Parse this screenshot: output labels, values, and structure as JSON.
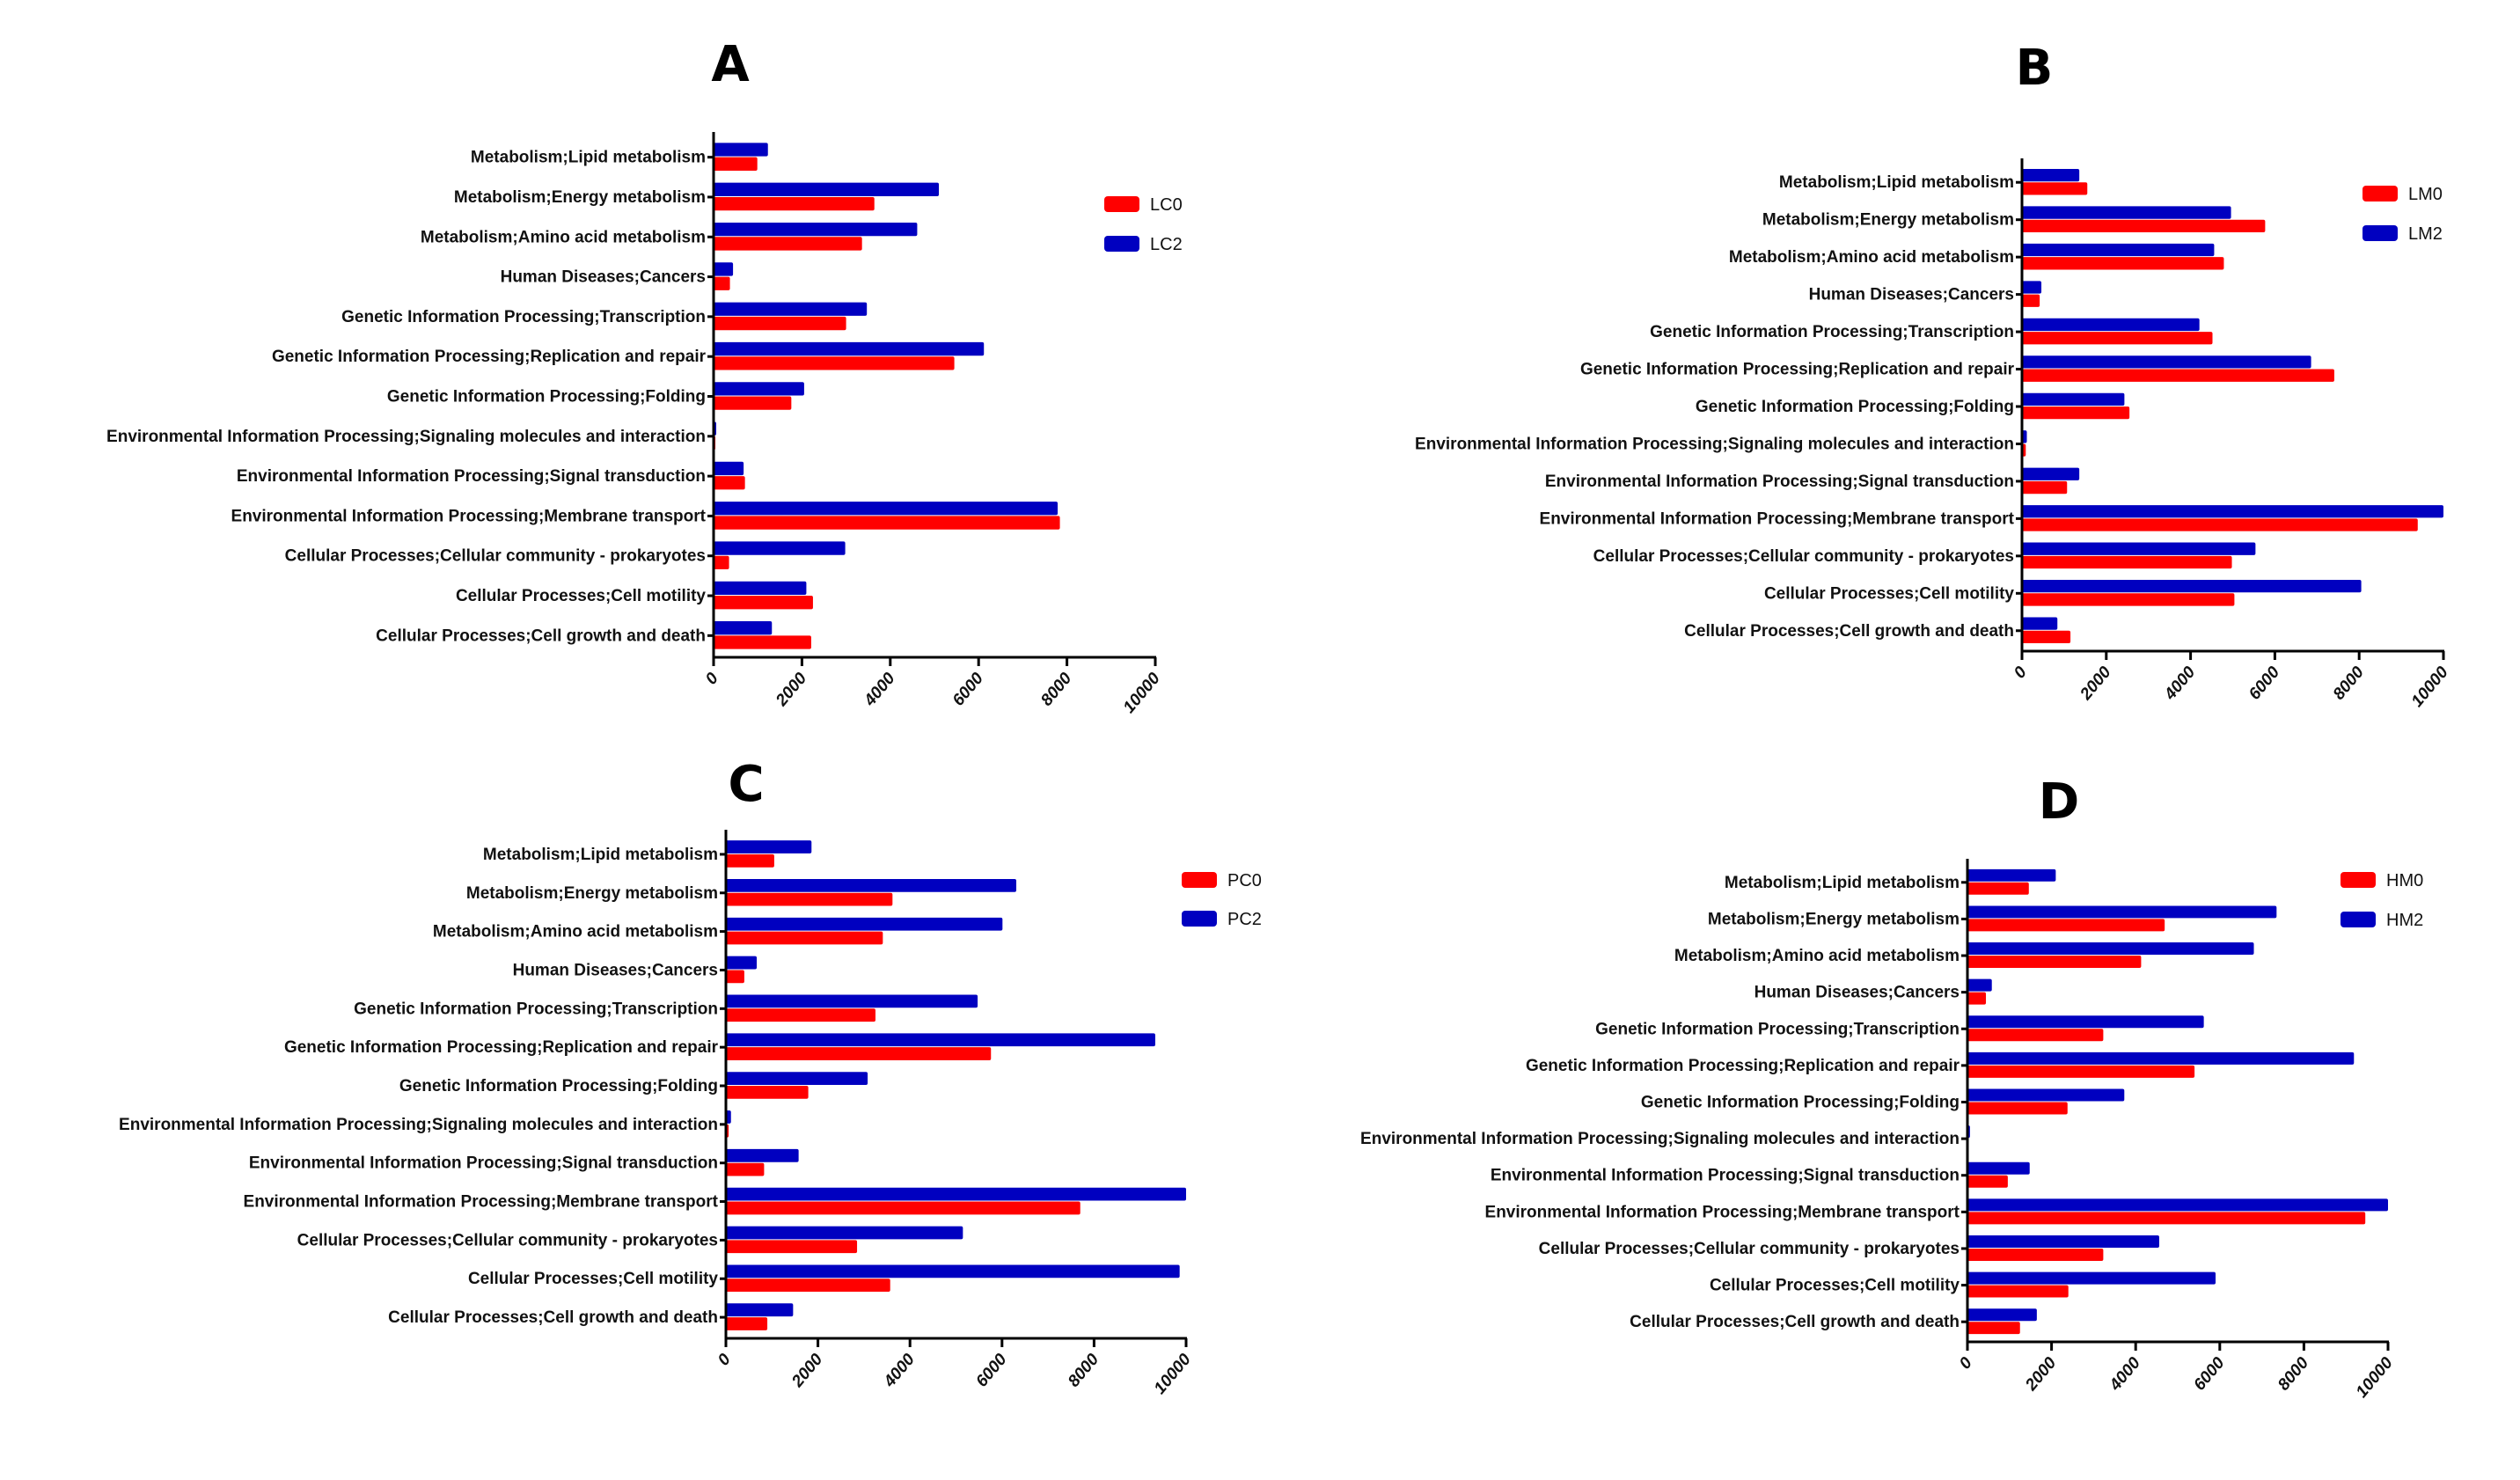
{
  "colors": {
    "series0": "#FF0000",
    "series2": "#0000C0"
  },
  "chart_data": [
    {
      "type": "bar",
      "orientation": "horizontal",
      "title": "A",
      "categories": [
        "Metabolism;Lipid metabolism",
        "Metabolism;Energy metabolism",
        "Metabolism;Amino acid metabolism",
        "Human Diseases;Cancers",
        "Genetic Information Processing;Transcription",
        "Genetic Information Processing;Replication and repair",
        "Genetic Information Processing;Folding",
        "Environmental Information Processing;Signaling molecules and interaction",
        "Environmental Information Processing;Signal transduction",
        "Environmental Information Processing;Membrane transport",
        "Cellular Processes;Cellular community - prokaryotes",
        "Cellular Processes;Cell motility",
        "Cellular Processes;Cell growth and death"
      ],
      "series": [
        {
          "name": "LC0",
          "color": "#FF0000",
          "values": [
            990,
            3640,
            3360,
            370,
            3000,
            5450,
            1760,
            40,
            710,
            7840,
            350,
            2250,
            2210
          ]
        },
        {
          "name": "LC2",
          "color": "#0000C0",
          "values": [
            1230,
            5100,
            4610,
            440,
            3470,
            6120,
            2050,
            60,
            680,
            7790,
            2980,
            2100,
            1320
          ]
        }
      ],
      "xlabel": "",
      "ylabel": "",
      "xlim": [
        0,
        10000
      ],
      "xticks": [
        "0",
        "2000",
        "4000",
        "6000",
        "8000",
        "10000"
      ],
      "legend": "right"
    },
    {
      "type": "bar",
      "orientation": "horizontal",
      "title": "B",
      "categories": [
        "Metabolism;Lipid metabolism",
        "Metabolism;Energy metabolism",
        "Metabolism;Amino acid metabolism",
        "Human Diseases;Cancers",
        "Genetic Information Processing;Transcription",
        "Genetic Information Processing;Replication and repair",
        "Genetic Information Processing;Folding",
        "Environmental Information Processing;Signaling molecules and interaction",
        "Environmental Information Processing;Signal transduction",
        "Environmental Information Processing;Membrane transport",
        "Cellular Processes;Cellular community - prokaryotes",
        "Cellular Processes;Cell motility",
        "Cellular Processes;Cell growth and death"
      ],
      "series": [
        {
          "name": "LM0",
          "color": "#FF0000",
          "values": [
            1550,
            5770,
            4790,
            420,
            4520,
            7410,
            2550,
            90,
            1070,
            9390,
            4980,
            5040,
            1150
          ]
        },
        {
          "name": "LM2",
          "color": "#0000C0",
          "values": [
            1360,
            4960,
            4560,
            460,
            4210,
            6860,
            2430,
            115,
            1360,
            10000,
            5540,
            8050,
            840
          ]
        }
      ],
      "xlabel": "",
      "ylabel": "",
      "xlim": [
        0,
        10000
      ],
      "xticks": [
        "0",
        "2000",
        "4000",
        "6000",
        "8000",
        "10000"
      ],
      "legend": "top-right"
    },
    {
      "type": "bar",
      "orientation": "horizontal",
      "title": "C",
      "categories": [
        "Metabolism;Lipid metabolism",
        "Metabolism;Energy metabolism",
        "Metabolism;Amino acid metabolism",
        "Human Diseases;Cancers",
        "Genetic Information Processing;Transcription",
        "Genetic Information Processing;Replication and repair",
        "Genetic Information Processing;Folding",
        "Environmental Information Processing;Signaling molecules and interaction",
        "Environmental Information Processing;Signal transduction",
        "Environmental Information Processing;Membrane transport",
        "Cellular Processes;Cellular community - prokaryotes",
        "Cellular Processes;Cell motility",
        "Cellular Processes;Cell growth and death"
      ],
      "series": [
        {
          "name": "PC0",
          "color": "#FF0000",
          "values": [
            1050,
            3620,
            3410,
            400,
            3250,
            5760,
            1790,
            60,
            830,
            7700,
            2850,
            3570,
            900
          ]
        },
        {
          "name": "PC2",
          "color": "#0000C0",
          "values": [
            1860,
            6310,
            6010,
            670,
            5470,
            9330,
            3080,
            110,
            1580,
            10000,
            5150,
            9860,
            1460
          ]
        }
      ],
      "xlabel": "",
      "ylabel": "",
      "xlim": [
        0,
        10000
      ],
      "xticks": [
        "0",
        "2000",
        "4000",
        "6000",
        "8000",
        "10000"
      ],
      "legend": "top-right"
    },
    {
      "type": "bar",
      "orientation": "horizontal",
      "title": "D",
      "categories": [
        "Metabolism;Lipid metabolism",
        "Metabolism;Energy metabolism",
        "Metabolism;Amino acid metabolism",
        "Human Diseases;Cancers",
        "Genetic Information Processing;Transcription",
        "Genetic Information Processing;Replication and repair",
        "Genetic Information Processing;Folding",
        "Environmental Information Processing;Signaling molecules and interaction",
        "Environmental Information Processing;Signal transduction",
        "Environmental Information Processing;Membrane transport",
        "Cellular Processes;Cellular community - prokaryotes",
        "Cellular Processes;Cell motility",
        "Cellular Processes;Cell growth and death"
      ],
      "series": [
        {
          "name": "HM0",
          "color": "#FF0000",
          "values": [
            1460,
            4690,
            4130,
            440,
            3230,
            5400,
            2380,
            20,
            960,
            9460,
            3230,
            2400,
            1250
          ]
        },
        {
          "name": "HM2",
          "color": "#0000C0",
          "values": [
            2100,
            7350,
            6810,
            580,
            5620,
            9190,
            3730,
            60,
            1480,
            10000,
            4560,
            5900,
            1650
          ]
        }
      ],
      "xlabel": "",
      "ylabel": "",
      "xlim": [
        0,
        10000
      ],
      "xticks": [
        "0",
        "2000",
        "4000",
        "6000",
        "8000",
        "10000"
      ],
      "legend": "top-right"
    }
  ]
}
